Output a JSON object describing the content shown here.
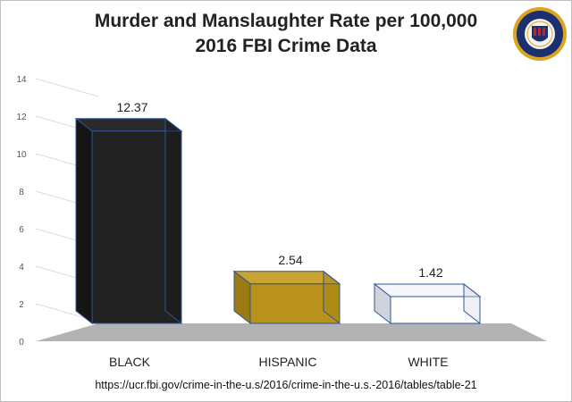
{
  "chart_data": {
    "type": "bar",
    "title": "Murder and Manslaughter Rate per 100,000",
    "subtitle": "2016 FBI Crime Data",
    "categories": [
      "BLACK",
      "HISPANIC",
      "WHITE"
    ],
    "values": [
      12.37,
      2.54,
      1.42
    ],
    "data_labels": [
      "12.37",
      "2.54",
      "1.42"
    ],
    "colors": [
      "#1f1f1f",
      "#b8921a",
      "#ffffff"
    ],
    "ylim": [
      0,
      14
    ],
    "yticks": [
      "0",
      "2",
      "4",
      "6",
      "8",
      "10",
      "12",
      "14"
    ],
    "grid": true,
    "style": "3d-column"
  },
  "source_text": "https://ucr.fbi.gov/crime-in-the-u.s/2016/crime-in-the-u.s.-2016/tables/table-21",
  "logo": {
    "icon": "fbi-seal-icon",
    "text": "DEPARTMENT OF JUSTICE · FEDERAL BUREAU OF INVESTIGATION"
  }
}
